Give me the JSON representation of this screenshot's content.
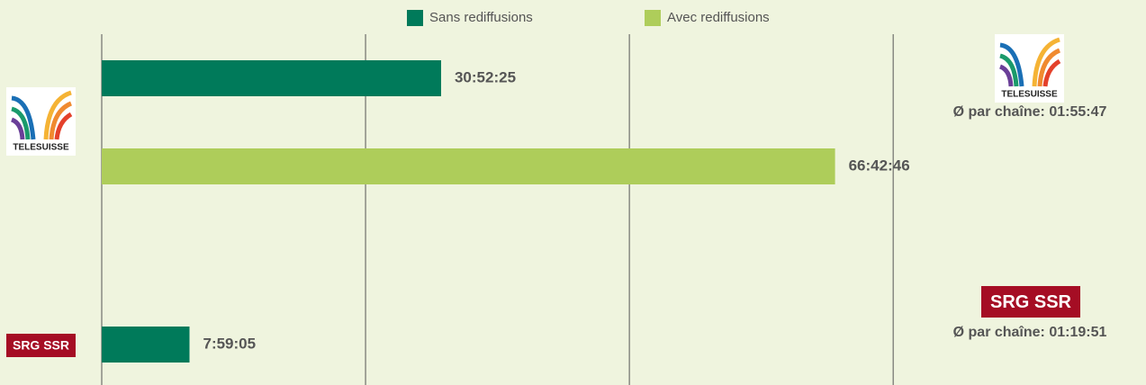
{
  "chart_data": {
    "type": "bar",
    "orientation": "horizontal",
    "categories": [
      "TELESUISSE",
      "SRG SSR"
    ],
    "series": [
      {
        "name": "Sans rediffusions",
        "color": "#007a5a",
        "values": [
          30.873611,
          7.984722
        ],
        "value_labels": [
          "30:52:25",
          "7:59:05"
        ]
      },
      {
        "name": "Avec rediffusions",
        "color": "#aecd5a",
        "values": [
          66.712778,
          null
        ],
        "value_labels": [
          "66:42:46",
          null
        ]
      }
    ],
    "xlim": [
      0,
      95
    ],
    "xticks": [
      0,
      24,
      48,
      72
    ],
    "grid": true,
    "annotations": [
      "Ø par chaîne: 01:55:47",
      "Ø par chaîne: 01:19:51"
    ]
  }
}
